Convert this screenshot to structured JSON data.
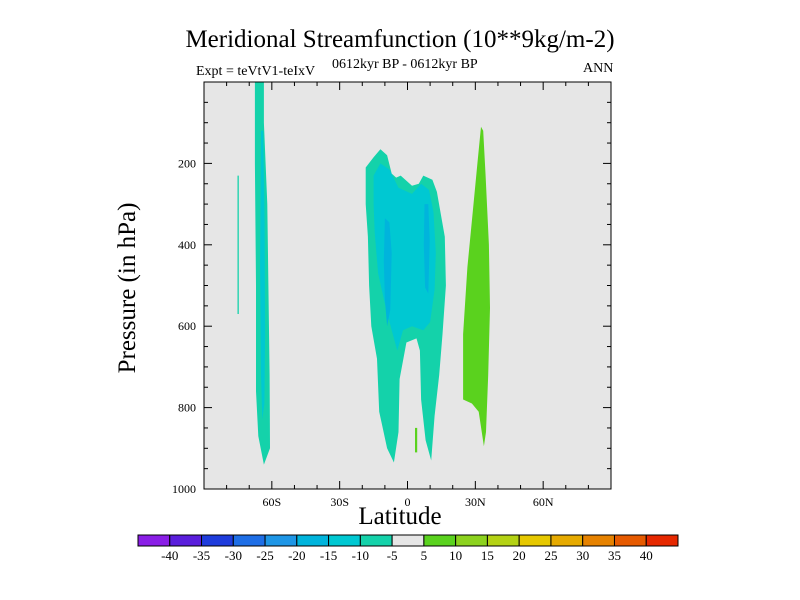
{
  "chart_data": {
    "type": "contour",
    "title": "Meridional Streamfunction (10**9kg/m-2)",
    "subtitle_left": "Expt = teVtV1-teIxV",
    "subtitle_center": "0612kyr BP - 0612kyr BP",
    "subtitle_right": "ANN",
    "xlabel": "Latitude",
    "ylabel": "Pressure (in hPa)",
    "xlim": [
      -90,
      90
    ],
    "ylim": [
      1000,
      0
    ],
    "x_ticks": [
      -60,
      -30,
      0,
      30,
      60
    ],
    "x_tick_labels": [
      "60S",
      "30S",
      "0",
      "30N",
      "60N"
    ],
    "y_ticks": [
      200,
      400,
      600,
      800,
      1000
    ],
    "y_tick_labels": [
      "200",
      "400",
      "600",
      "800",
      "1000"
    ],
    "background_color": "#e6e6e6",
    "colorbar": {
      "levels": [
        -40,
        -35,
        -30,
        -25,
        -20,
        -15,
        -10,
        -5,
        5,
        10,
        15,
        20,
        25,
        30,
        35,
        40
      ],
      "labels": [
        "-40",
        "-35",
        "-30",
        "-25",
        "-20",
        "-15",
        "-10",
        "-5",
        "5",
        "10",
        "15",
        "20",
        "25",
        "30",
        "35",
        "40"
      ],
      "colors": [
        "#8a1ee6",
        "#5a1edc",
        "#1e3cdc",
        "#1e6ee6",
        "#1e96e6",
        "#00b4dc",
        "#00c8d2",
        "#14d2aa",
        "#e6e6e6",
        "#5ad21e",
        "#8cd21e",
        "#b4d214",
        "#e6c800",
        "#e6aa00",
        "#e68200",
        "#e65a00",
        "#e62800"
      ]
    },
    "contour_regions": [
      {
        "name": "tongue-minus-5-60s",
        "value": -5,
        "color": "#14d2aa",
        "points": [
          [
            -67.5,
            0
          ],
          [
            -63.5,
            0
          ],
          [
            -63.5,
            100
          ],
          [
            -62,
            300
          ],
          [
            -61.5,
            500
          ],
          [
            -61,
            720
          ],
          [
            -60.8,
            900
          ],
          [
            -63.5,
            940
          ],
          [
            -66,
            870
          ],
          [
            -67,
            760
          ],
          [
            -67,
            500
          ],
          [
            -67.5,
            200
          ]
        ]
      },
      {
        "name": "tongue-minus-10-60s",
        "value": -10,
        "color": "#00c8d2",
        "points": [
          [
            -64.8,
            120
          ],
          [
            -63.8,
            120
          ],
          [
            -63.2,
            350
          ],
          [
            -63,
            620
          ],
          [
            -63.3,
            790
          ],
          [
            -64.2,
            830
          ],
          [
            -64.8,
            720
          ],
          [
            -65.2,
            450
          ]
        ]
      },
      {
        "name": "sliver-minus-5-75s",
        "value": -5,
        "color": "#14d2aa",
        "points": [
          [
            -75.2,
            230
          ],
          [
            -74.6,
            230
          ],
          [
            -74.6,
            570
          ],
          [
            -75.2,
            570
          ]
        ]
      },
      {
        "name": "cell-minus-5-tropics",
        "value": -5,
        "color": "#14d2aa",
        "points": [
          [
            -18.5,
            210
          ],
          [
            -15,
            185
          ],
          [
            -12,
            165
          ],
          [
            -9,
            180
          ],
          [
            -7,
            225
          ],
          [
            -5,
            235
          ],
          [
            -3,
            230
          ],
          [
            2,
            255
          ],
          [
            5,
            250
          ],
          [
            7,
            230
          ],
          [
            11,
            240
          ],
          [
            13,
            270
          ],
          [
            16.5,
            380
          ],
          [
            17,
            500
          ],
          [
            15.5,
            620
          ],
          [
            14,
            720
          ],
          [
            12,
            820
          ],
          [
            10.5,
            930
          ],
          [
            8,
            880
          ],
          [
            6,
            780
          ],
          [
            5.5,
            660
          ],
          [
            4,
            630
          ],
          [
            -0.5,
            640
          ],
          [
            -3.5,
            730
          ],
          [
            -4,
            860
          ],
          [
            -6,
            935
          ],
          [
            -9,
            900
          ],
          [
            -12.5,
            810
          ],
          [
            -13.5,
            680
          ],
          [
            -16,
            600
          ],
          [
            -17,
            500
          ],
          [
            -17.5,
            380
          ],
          [
            -18.5,
            300
          ]
        ]
      },
      {
        "name": "cell-minus-10-tropics",
        "value": -10,
        "color": "#00c8d2",
        "points": [
          [
            -15,
            230
          ],
          [
            -12,
            200
          ],
          [
            -8,
            215
          ],
          [
            -4,
            260
          ],
          [
            2,
            275
          ],
          [
            6,
            250
          ],
          [
            9.5,
            265
          ],
          [
            11.5,
            320
          ],
          [
            12.5,
            420
          ],
          [
            12,
            510
          ],
          [
            10,
            590
          ],
          [
            7,
            610
          ],
          [
            2,
            600
          ],
          [
            -2,
            610
          ],
          [
            -4.5,
            660
          ],
          [
            -7,
            610
          ],
          [
            -10,
            545
          ],
          [
            -13,
            470
          ],
          [
            -14.5,
            370
          ],
          [
            -15,
            300
          ]
        ]
      },
      {
        "name": "cell-minus-15-west",
        "value": -15,
        "color": "#00b4dc",
        "points": [
          [
            -10,
            335
          ],
          [
            -8,
            345
          ],
          [
            -7,
            420
          ],
          [
            -7.6,
            560
          ],
          [
            -9,
            600
          ],
          [
            -10,
            535
          ],
          [
            -10.5,
            440
          ]
        ]
      },
      {
        "name": "cell-minus-15-east",
        "value": -15,
        "color": "#00b4dc",
        "points": [
          [
            7.5,
            300
          ],
          [
            9.2,
            300
          ],
          [
            9.8,
            390
          ],
          [
            9.2,
            520
          ],
          [
            7.8,
            505
          ],
          [
            7.2,
            400
          ]
        ]
      },
      {
        "name": "speck-plus-5-equator",
        "value": 5,
        "color": "#5ad21e",
        "points": [
          [
            3.3,
            850
          ],
          [
            4.3,
            850
          ],
          [
            4.3,
            910
          ],
          [
            3.3,
            910
          ]
        ]
      },
      {
        "name": "tongue-plus-5-30n",
        "value": 5,
        "color": "#5ad21e",
        "points": [
          [
            32.5,
            110
          ],
          [
            33.5,
            120
          ],
          [
            34.5,
            225
          ],
          [
            36,
            400
          ],
          [
            36.5,
            555
          ],
          [
            35.7,
            720
          ],
          [
            34.7,
            860
          ],
          [
            33.8,
            895
          ],
          [
            31.5,
            810
          ],
          [
            28.5,
            790
          ],
          [
            24.6,
            780
          ],
          [
            24.6,
            620
          ],
          [
            26.5,
            455
          ],
          [
            29,
            310
          ],
          [
            31,
            195
          ]
        ]
      }
    ]
  }
}
